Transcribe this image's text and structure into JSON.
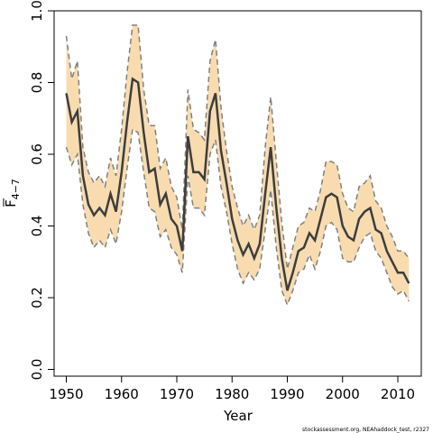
{
  "chart_data": {
    "type": "line",
    "xlabel": "Year",
    "ylabel_main": "F",
    "ylabel_sub": "4−7",
    "xlim": [
      1948,
      2014
    ],
    "ylim": [
      0,
      1
    ],
    "x_ticks": [
      1950,
      1960,
      1970,
      1980,
      1990,
      2000,
      2010
    ],
    "y_ticks": [
      "0.0",
      "0.2",
      "0.4",
      "0.6",
      "0.8",
      "1.0"
    ],
    "footer": "stockassessment.org, NEAhaddock_test, r2327",
    "colors": {
      "band": "#f8dcb0",
      "bound_line": "#808080",
      "estimate_line": "#3d3d3d",
      "axis": "#000000"
    },
    "series": [
      {
        "x": [
          1950,
          1951,
          1952,
          1953,
          1954,
          1955,
          1956,
          1957,
          1958,
          1959,
          1960,
          1961,
          1962,
          1963,
          1964,
          1965,
          1966,
          1967,
          1968,
          1969,
          1970,
          1971,
          1972,
          1973,
          1974,
          1975,
          1976,
          1977,
          1978,
          1979,
          1980,
          1981,
          1982,
          1983,
          1984,
          1985,
          1986,
          1987,
          1988,
          1989,
          1990,
          1991,
          1992,
          1993,
          1994,
          1995,
          1996,
          1997,
          1998,
          1999,
          2000,
          2001,
          2002,
          2003,
          2004,
          2005,
          2006,
          2007,
          2008,
          2009,
          2010,
          2011,
          2012
        ],
        "estimate": [
          0.77,
          0.69,
          0.72,
          0.54,
          0.46,
          0.43,
          0.45,
          0.43,
          0.49,
          0.44,
          0.55,
          0.69,
          0.81,
          0.8,
          0.66,
          0.55,
          0.56,
          0.46,
          0.49,
          0.42,
          0.4,
          0.33,
          0.65,
          0.55,
          0.55,
          0.53,
          0.72,
          0.77,
          0.61,
          0.52,
          0.42,
          0.36,
          0.32,
          0.35,
          0.31,
          0.35,
          0.49,
          0.62,
          0.45,
          0.31,
          0.22,
          0.27,
          0.33,
          0.34,
          0.38,
          0.36,
          0.42,
          0.48,
          0.49,
          0.48,
          0.4,
          0.37,
          0.36,
          0.42,
          0.44,
          0.45,
          0.39,
          0.38,
          0.33,
          0.3,
          0.27,
          0.27,
          0.24
        ],
        "lower": [
          0.62,
          0.57,
          0.6,
          0.46,
          0.38,
          0.34,
          0.36,
          0.34,
          0.39,
          0.35,
          0.44,
          0.56,
          0.67,
          0.66,
          0.55,
          0.45,
          0.44,
          0.37,
          0.39,
          0.34,
          0.32,
          0.27,
          0.54,
          0.45,
          0.45,
          0.43,
          0.6,
          0.64,
          0.51,
          0.44,
          0.35,
          0.28,
          0.24,
          0.27,
          0.25,
          0.28,
          0.39,
          0.5,
          0.34,
          0.22,
          0.18,
          0.22,
          0.27,
          0.28,
          0.32,
          0.28,
          0.33,
          0.4,
          0.41,
          0.39,
          0.31,
          0.3,
          0.3,
          0.34,
          0.37,
          0.38,
          0.33,
          0.31,
          0.27,
          0.23,
          0.21,
          0.22,
          0.19
        ],
        "upper": [
          0.93,
          0.81,
          0.86,
          0.62,
          0.55,
          0.52,
          0.54,
          0.51,
          0.59,
          0.54,
          0.67,
          0.83,
          0.96,
          0.96,
          0.78,
          0.68,
          0.68,
          0.56,
          0.59,
          0.51,
          0.48,
          0.39,
          0.78,
          0.67,
          0.66,
          0.64,
          0.86,
          0.92,
          0.73,
          0.61,
          0.51,
          0.45,
          0.4,
          0.43,
          0.39,
          0.43,
          0.62,
          0.76,
          0.58,
          0.41,
          0.28,
          0.34,
          0.4,
          0.41,
          0.45,
          0.44,
          0.5,
          0.58,
          0.58,
          0.57,
          0.49,
          0.45,
          0.44,
          0.51,
          0.52,
          0.54,
          0.47,
          0.45,
          0.4,
          0.37,
          0.33,
          0.33,
          0.31
        ]
      }
    ]
  }
}
